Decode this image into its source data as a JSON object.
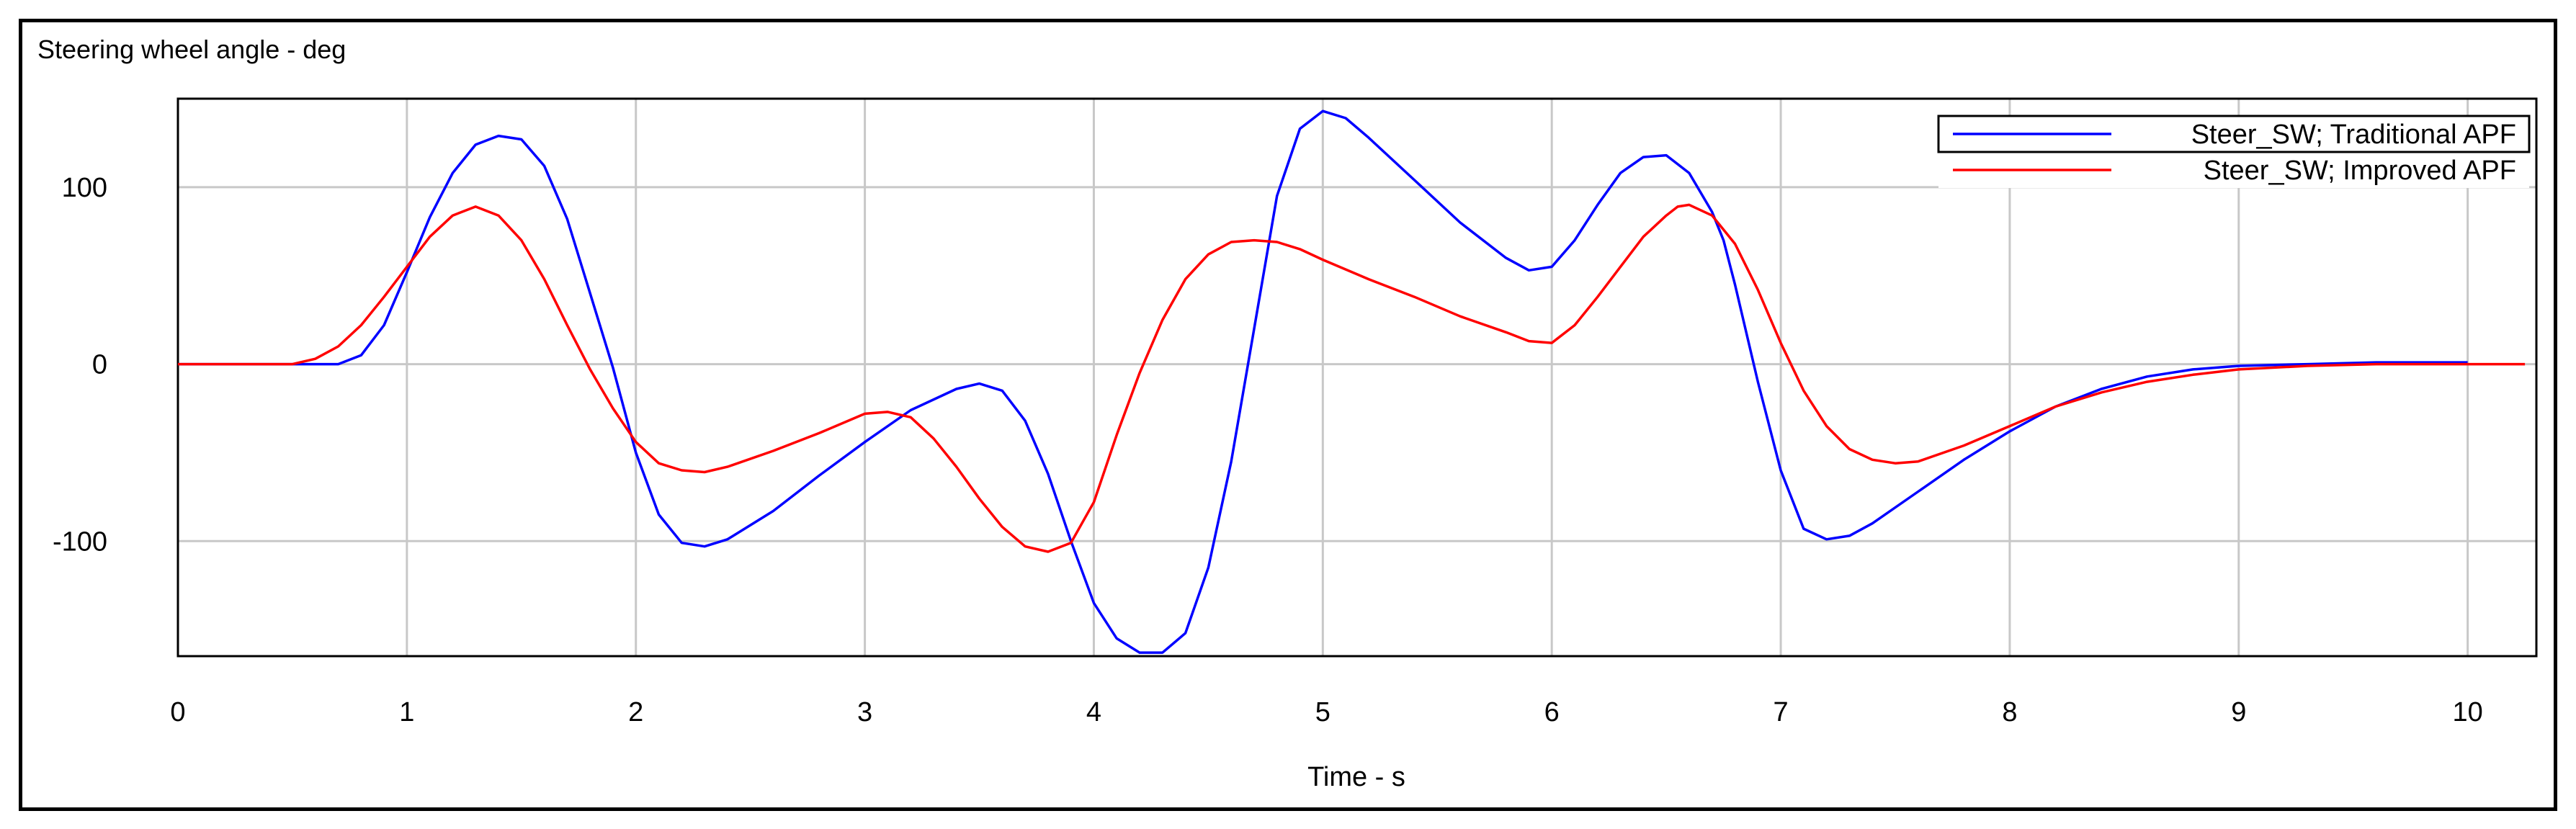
{
  "chart_data": {
    "type": "line",
    "title": "Steering wheel angle - deg",
    "xlabel": "Time - s",
    "ylabel": "",
    "xlim": [
      0,
      10.3
    ],
    "ylim": [
      -165,
      150
    ],
    "x_ticks": [
      "0",
      "1",
      "2",
      "3",
      "4",
      "5",
      "6",
      "7",
      "8",
      "9",
      "10"
    ],
    "y_ticks": [
      "-100",
      "0",
      "100"
    ],
    "grid": true,
    "legend_position": "top-right",
    "series": [
      {
        "name": "Steer_SW; Traditional APF",
        "color": "#0000ff",
        "x": [
          0,
          0.5,
          0.7,
          0.8,
          0.9,
          1.0,
          1.1,
          1.2,
          1.3,
          1.4,
          1.5,
          1.6,
          1.7,
          1.8,
          1.9,
          2.0,
          2.1,
          2.2,
          2.3,
          2.4,
          2.6,
          2.8,
          3.0,
          3.2,
          3.4,
          3.5,
          3.6,
          3.7,
          3.8,
          3.9,
          4.0,
          4.1,
          4.2,
          4.3,
          4.4,
          4.5,
          4.6,
          4.7,
          4.8,
          4.9,
          5.0,
          5.1,
          5.2,
          5.4,
          5.6,
          5.8,
          5.9,
          6.0,
          6.1,
          6.2,
          6.3,
          6.4,
          6.5,
          6.6,
          6.7,
          6.75,
          6.8,
          6.9,
          7.0,
          7.1,
          7.2,
          7.3,
          7.4,
          7.6,
          7.8,
          8.0,
          8.2,
          8.4,
          8.6,
          8.8,
          9.0,
          9.3,
          9.6,
          10.0
        ],
        "y": [
          0,
          0,
          0,
          5,
          22,
          52,
          83,
          108,
          124,
          129,
          127,
          112,
          82,
          40,
          -2,
          -50,
          -85,
          -101,
          -103,
          -99,
          -83,
          -63,
          -44,
          -26,
          -14,
          -11,
          -15,
          -32,
          -62,
          -100,
          -135,
          -155,
          -163,
          -163,
          -152,
          -115,
          -55,
          20,
          95,
          133,
          143,
          139,
          128,
          104,
          80,
          60,
          53,
          55,
          70,
          90,
          108,
          117,
          118,
          108,
          86,
          70,
          45,
          -10,
          -60,
          -93,
          -99,
          -97,
          -90,
          -72,
          -54,
          -38,
          -24,
          -14,
          -7,
          -3,
          -1,
          0,
          1,
          1
        ]
      },
      {
        "name": "Steer_SW; Improved APF",
        "color": "#ff0000",
        "x": [
          0,
          0.5,
          0.6,
          0.7,
          0.8,
          0.9,
          1.0,
          1.1,
          1.2,
          1.3,
          1.4,
          1.5,
          1.6,
          1.7,
          1.8,
          1.9,
          2.0,
          2.1,
          2.2,
          2.3,
          2.4,
          2.6,
          2.8,
          3.0,
          3.1,
          3.2,
          3.3,
          3.4,
          3.5,
          3.6,
          3.7,
          3.8,
          3.9,
          4.0,
          4.1,
          4.2,
          4.3,
          4.4,
          4.5,
          4.6,
          4.7,
          4.8,
          4.9,
          5.0,
          5.2,
          5.4,
          5.6,
          5.8,
          5.9,
          6.0,
          6.1,
          6.2,
          6.3,
          6.4,
          6.5,
          6.55,
          6.6,
          6.7,
          6.8,
          6.9,
          7.0,
          7.1,
          7.2,
          7.3,
          7.4,
          7.5,
          7.6,
          7.8,
          8.0,
          8.2,
          8.4,
          8.6,
          8.8,
          9.0,
          9.3,
          9.6,
          10.0,
          10.25
        ],
        "y": [
          0,
          0,
          3,
          10,
          22,
          38,
          55,
          72,
          84,
          89,
          84,
          70,
          48,
          22,
          -3,
          -25,
          -44,
          -56,
          -60,
          -61,
          -58,
          -49,
          -39,
          -28,
          -27,
          -30,
          -42,
          -58,
          -76,
          -92,
          -103,
          -106,
          -101,
          -78,
          -40,
          -5,
          25,
          48,
          62,
          69,
          70,
          69,
          65,
          59,
          48,
          38,
          27,
          18,
          13,
          12,
          22,
          38,
          55,
          72,
          84,
          89,
          90,
          84,
          68,
          42,
          12,
          -15,
          -35,
          -48,
          -54,
          -56,
          -55,
          -46,
          -35,
          -24,
          -16,
          -10,
          -6,
          -3,
          -1,
          0,
          0,
          0
        ]
      }
    ]
  }
}
